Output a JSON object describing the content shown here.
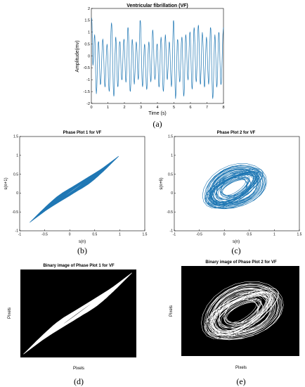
{
  "subfigure_labels": [
    "(a)",
    "(b)",
    "(c)",
    "(d)",
    "(e)"
  ],
  "chart_data": [
    {
      "id": "a",
      "type": "line",
      "title": "Ventricular fibrillation (VF)",
      "xlabel": "Time (s)",
      "ylabel": "Amplitude(mv)",
      "xlim": [
        0,
        8
      ],
      "ylim": [
        -2,
        2
      ],
      "xticks": [
        0,
        1,
        2,
        3,
        4,
        5,
        6,
        7,
        8
      ],
      "yticks": [
        -2,
        -1.5,
        -1,
        -0.5,
        0,
        0.5,
        1,
        1.5,
        2
      ],
      "xtick_labels": [
        "0",
        "1",
        "2",
        "3",
        "4",
        "5",
        "6",
        "7",
        "8"
      ],
      "ytick_labels": [
        "-2",
        "-1.5",
        "-1",
        "-0.5",
        "0",
        "0.5",
        "1",
        "1.5",
        "2"
      ],
      "color": "#1f77b4",
      "peaks": [
        [
          0.02,
          1.6
        ],
        [
          0.1,
          -0.4
        ],
        [
          0.2,
          0.9
        ],
        [
          0.3,
          -1.6
        ],
        [
          0.43,
          0.6
        ],
        [
          0.55,
          -1.2
        ],
        [
          0.7,
          0.7
        ],
        [
          0.82,
          -1.3
        ],
        [
          0.95,
          0.5
        ],
        [
          1.08,
          -1.5
        ],
        [
          1.22,
          1.4
        ],
        [
          1.36,
          -1.7
        ],
        [
          1.48,
          0.8
        ],
        [
          1.6,
          -1.3
        ],
        [
          1.72,
          0.6
        ],
        [
          1.85,
          -1.0
        ],
        [
          1.97,
          0.7
        ],
        [
          2.1,
          -1.1
        ],
        [
          2.22,
          1.2
        ],
        [
          2.36,
          -1.5
        ],
        [
          2.48,
          0.7
        ],
        [
          2.6,
          -1.2
        ],
        [
          2.72,
          0.6
        ],
        [
          2.84,
          -1.0
        ],
        [
          2.96,
          1.5
        ],
        [
          3.1,
          -1.3
        ],
        [
          3.22,
          0.5
        ],
        [
          3.35,
          -1.4
        ],
        [
          3.48,
          0.6
        ],
        [
          3.6,
          -1.1
        ],
        [
          3.72,
          1.1
        ],
        [
          3.85,
          -1.0
        ],
        [
          3.98,
          0.5
        ],
        [
          4.1,
          -1.3
        ],
        [
          4.22,
          0.8
        ],
        [
          4.36,
          -1.5
        ],
        [
          4.48,
          0.9
        ],
        [
          4.6,
          -1.0
        ],
        [
          4.72,
          0.6
        ],
        [
          4.85,
          -1.3
        ],
        [
          4.98,
          1.5
        ],
        [
          5.1,
          -1.8
        ],
        [
          5.22,
          0.7
        ],
        [
          5.35,
          -1.1
        ],
        [
          5.48,
          0.8
        ],
        [
          5.6,
          -1.7
        ],
        [
          5.72,
          0.9
        ],
        [
          5.85,
          -1.0
        ],
        [
          5.97,
          1.0
        ],
        [
          6.1,
          -1.4
        ],
        [
          6.22,
          1.2
        ],
        [
          6.35,
          -1.1
        ],
        [
          6.48,
          1.3
        ],
        [
          6.6,
          -1.2
        ],
        [
          6.72,
          1.0
        ],
        [
          6.85,
          -1.3
        ],
        [
          6.97,
          0.8
        ],
        [
          7.1,
          -1.2
        ],
        [
          7.22,
          1.2
        ],
        [
          7.35,
          -1.8
        ],
        [
          7.48,
          0.9
        ],
        [
          7.6,
          -1.3
        ],
        [
          7.72,
          1.0
        ],
        [
          7.85,
          -1.2
        ],
        [
          8.0,
          1.2
        ]
      ]
    },
    {
      "id": "b",
      "type": "line",
      "title": "Phase Plot 1 for VF",
      "xlabel": "s(n)",
      "ylabel": "s(n+1)",
      "xlim": [
        -1,
        1.5
      ],
      "ylim": [
        -1,
        1.5
      ],
      "xticks": [
        -1,
        -0.5,
        0,
        0.5,
        1,
        1.5
      ],
      "yticks": [
        -1,
        -0.5,
        0,
        0.5,
        1,
        1.5
      ],
      "xtick_labels": [
        "-1",
        "-0.5",
        "0",
        "0.5",
        "1",
        "1.5"
      ],
      "ytick_labels": [
        "-1",
        "-0.5",
        "0",
        "0.5",
        "1",
        "1.5"
      ],
      "color": "#1f77b4",
      "attractor": {
        "start": [
          -0.8,
          -0.78
        ],
        "end": [
          0.98,
          0.98
        ],
        "width": 0.12
      }
    },
    {
      "id": "c",
      "type": "line",
      "title": "Phase Plot 2 for VF",
      "xlabel": "s(n)",
      "ylabel": "s(n+6)",
      "xlim": [
        -1,
        1.5
      ],
      "ylim": [
        -1,
        1.5
      ],
      "xticks": [
        -1,
        -0.5,
        0,
        0.5,
        1,
        1.5
      ],
      "yticks": [
        -1,
        -0.5,
        0,
        0.5,
        1,
        1.5
      ],
      "xtick_labels": [
        "-1",
        "-0.5",
        "0",
        "0.5",
        "1",
        "1.5"
      ],
      "ytick_labels": [
        "-1",
        "-0.5",
        "0",
        "0.5",
        "1",
        "1.5"
      ],
      "color": "#1f77b4",
      "attractor": {
        "center": [
          0.2,
          0.15
        ],
        "rx": 0.75,
        "ry": 0.55,
        "tilt_deg": 40
      }
    },
    {
      "id": "d",
      "type": "image",
      "title": "Binary image of Phase Plot 1 for VF",
      "xlabel": "Pixels",
      "ylabel": "Pixels",
      "background": "#000000",
      "foreground": "#ffffff"
    },
    {
      "id": "e",
      "type": "image",
      "title": "Binary image of Phase Plot 2 for VF",
      "xlabel": "Pixels",
      "ylabel": "Pixels",
      "background": "#000000",
      "foreground": "#ffffff"
    }
  ]
}
